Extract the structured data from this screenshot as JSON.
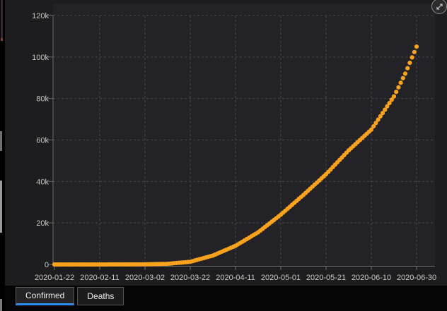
{
  "tabs": [
    {
      "label": "Confirmed",
      "active": true
    },
    {
      "label": "Deaths",
      "active": false
    }
  ],
  "controls": {
    "expand_button_icon": "expand-arrows"
  },
  "colors": {
    "series_orange": "#F9A21D",
    "active_tab_accent": "#2D8CF0",
    "plot_background": "#232327",
    "grid": "#47484B",
    "axis": "#6E6E6E",
    "tick_text": "#C9C9C9"
  },
  "chart_data": {
    "type": "scatter",
    "title": "",
    "xlabel": "",
    "ylabel": "",
    "legend": "none",
    "grid": "dashed",
    "x_range": [
      "2020-01-22",
      "2020-06-30"
    ],
    "point_interval_days": 1,
    "ylim": [
      0,
      120000
    ],
    "y_ticks": [
      {
        "label": "0",
        "value": 0
      },
      {
        "label": "20k",
        "value": 20000
      },
      {
        "label": "40k",
        "value": 40000
      },
      {
        "label": "60k",
        "value": 60000
      },
      {
        "label": "80k",
        "value": 80000
      },
      {
        "label": "100k",
        "value": 100000
      },
      {
        "label": "120k",
        "value": 120000
      }
    ],
    "x_ticks": [
      {
        "label": "2020-01-22",
        "day": 0
      },
      {
        "label": "2020-02-11",
        "day": 20
      },
      {
        "label": "2020-03-02",
        "day": 40
      },
      {
        "label": "2020-03-22",
        "day": 60
      },
      {
        "label": "2020-04-11",
        "day": 80
      },
      {
        "label": "2020-05-01",
        "day": 100
      },
      {
        "label": "2020-05-21",
        "day": 120
      },
      {
        "label": "2020-06-10",
        "day": 140
      },
      {
        "label": "2020-06-30",
        "day": 160
      }
    ],
    "series": [
      {
        "name": "Confirmed",
        "color": "#F9A21D",
        "anchors": [
          {
            "date": "2020-01-22",
            "value": 0
          },
          {
            "date": "2020-02-01",
            "value": 0
          },
          {
            "date": "2020-02-11",
            "value": 10
          },
          {
            "date": "2020-02-21",
            "value": 30
          },
          {
            "date": "2020-03-02",
            "value": 80
          },
          {
            "date": "2020-03-12",
            "value": 300
          },
          {
            "date": "2020-03-22",
            "value": 1300
          },
          {
            "date": "2020-04-01",
            "value": 4300
          },
          {
            "date": "2020-04-11",
            "value": 9000
          },
          {
            "date": "2020-04-21",
            "value": 15500
          },
          {
            "date": "2020-05-01",
            "value": 24000
          },
          {
            "date": "2020-05-11",
            "value": 33500
          },
          {
            "date": "2020-05-21",
            "value": 43500
          },
          {
            "date": "2020-05-31",
            "value": 55000
          },
          {
            "date": "2020-06-10",
            "value": 65000
          },
          {
            "date": "2020-06-20",
            "value": 81000
          },
          {
            "date": "2020-06-25",
            "value": 92000
          },
          {
            "date": "2020-06-30",
            "value": 105000
          }
        ]
      }
    ]
  }
}
